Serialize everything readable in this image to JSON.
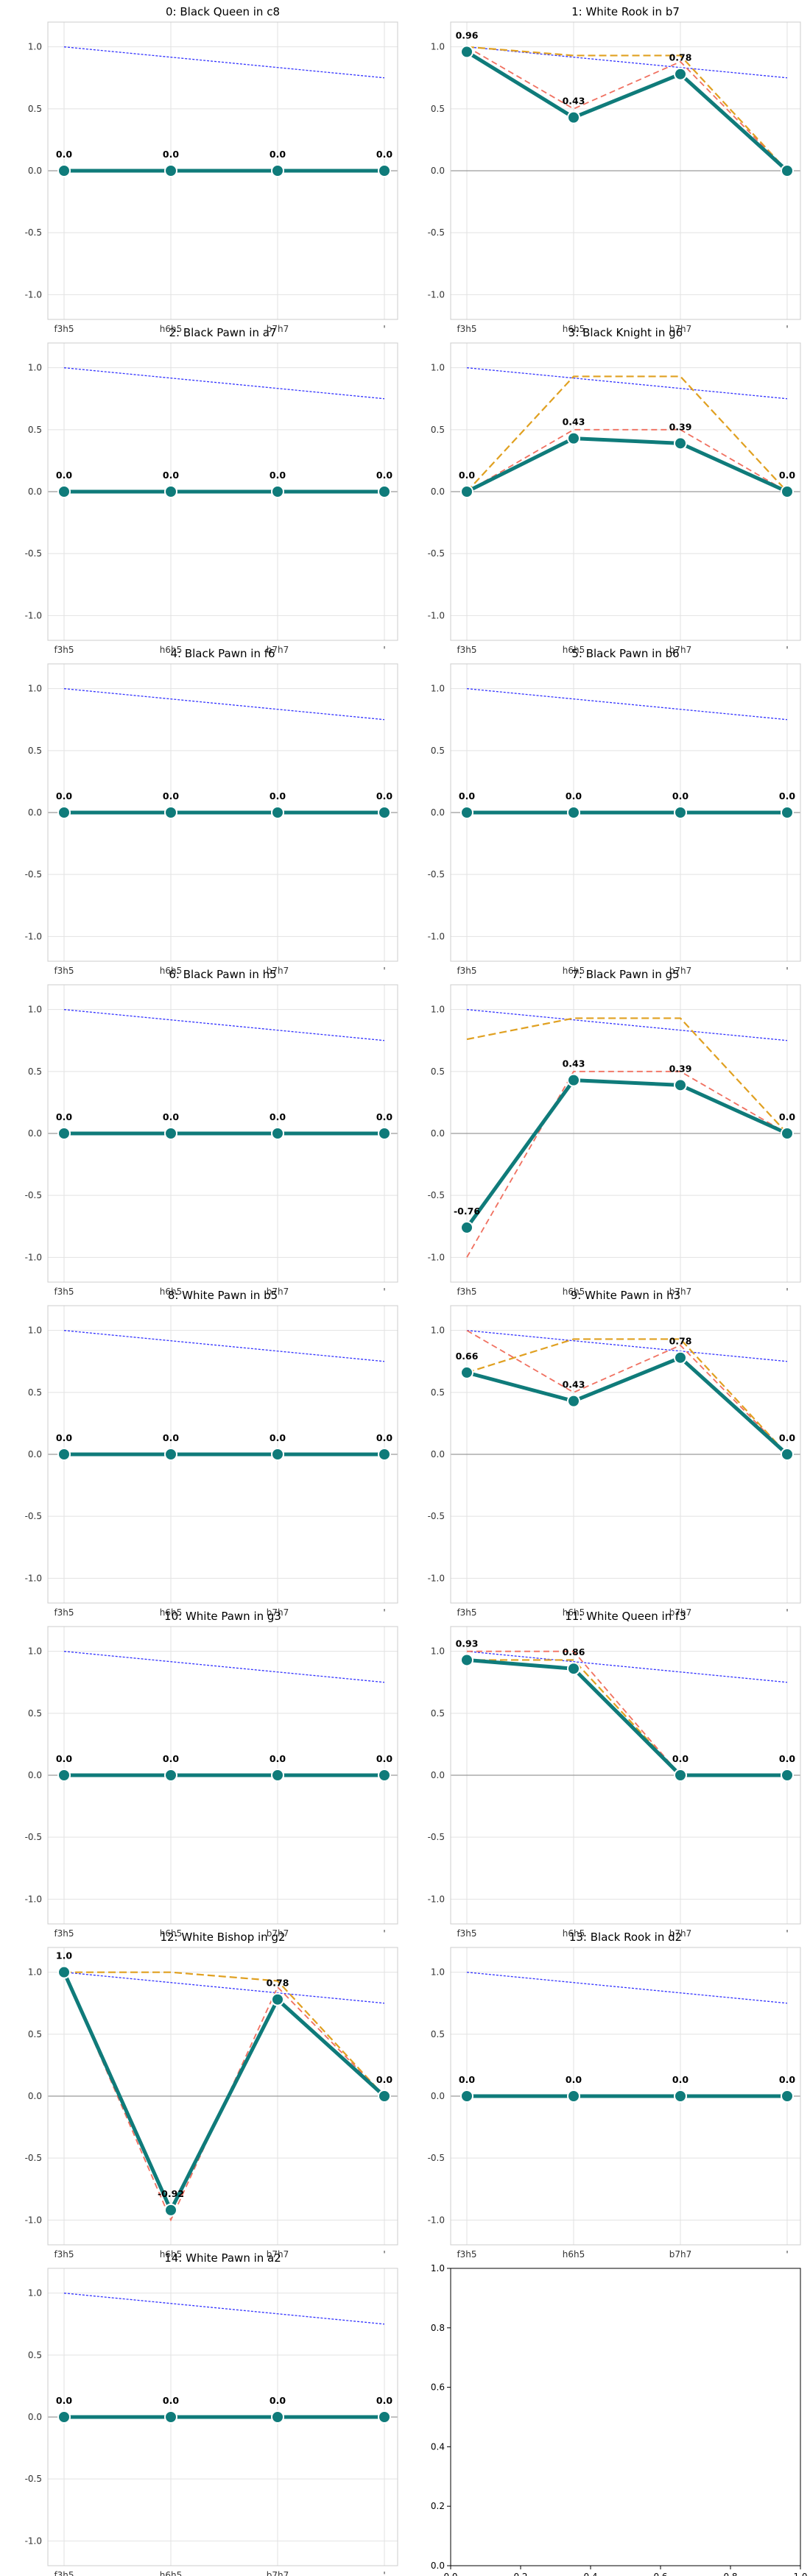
{
  "figure": {
    "x_ticks": [
      "f3h5",
      "h6h5",
      "b7h7",
      "'"
    ],
    "y_ticks": [
      "1.0",
      "0.5",
      "0.0",
      "-0.5",
      "-1.0"
    ],
    "empty_panel_ticks": [
      "0.0",
      "0.2",
      "0.4",
      "0.6",
      "0.8",
      "1.0"
    ]
  },
  "colors": {
    "main": "#0f7b7a",
    "blue_dotted": "#3333ff",
    "orange_dashed": "#e0a020",
    "red_dashed": "#f07060",
    "grid": "#e2e2e2",
    "zero_line": "#9a9a9a"
  },
  "chart_data": [
    {
      "title": "0: Black Queen in c8",
      "type": "line",
      "ylim": [
        -1.2,
        1.2
      ],
      "blue": [
        1.0,
        0.75
      ],
      "main": [
        0.0,
        0.0,
        0.0,
        0.0
      ],
      "labels": [
        "0.0",
        "0.0",
        "0.0",
        "0.0"
      ],
      "orange": null,
      "red": null
    },
    {
      "title": "1: White Rook in b7",
      "type": "line",
      "ylim": [
        -1.2,
        1.2
      ],
      "blue": [
        1.0,
        0.75
      ],
      "main": [
        0.96,
        0.43,
        0.78,
        0.0
      ],
      "labels": [
        "0.96",
        "0.43",
        "0.78",
        ""
      ],
      "orange": [
        1.0,
        0.93,
        0.93,
        0.0
      ],
      "red": [
        1.0,
        0.5,
        0.88,
        0.0
      ]
    },
    {
      "title": "2: Black Pawn in a7",
      "type": "line",
      "ylim": [
        -1.2,
        1.2
      ],
      "blue": [
        1.0,
        0.75
      ],
      "main": [
        0.0,
        0.0,
        0.0,
        0.0
      ],
      "labels": [
        "0.0",
        "0.0",
        "0.0",
        "0.0"
      ],
      "orange": null,
      "red": null
    },
    {
      "title": "3: Black Knight in g6",
      "type": "line",
      "ylim": [
        -1.2,
        1.2
      ],
      "blue": [
        1.0,
        0.75
      ],
      "main": [
        0.0,
        0.43,
        0.39,
        0.0
      ],
      "labels": [
        "0.0",
        "0.43",
        "0.39",
        "0.0"
      ],
      "orange": [
        0.0,
        0.93,
        0.93,
        0.0
      ],
      "red": [
        0.0,
        0.5,
        0.5,
        0.0
      ]
    },
    {
      "title": "4: Black Pawn in f6",
      "type": "line",
      "ylim": [
        -1.2,
        1.2
      ],
      "blue": [
        1.0,
        0.75
      ],
      "main": [
        0.0,
        0.0,
        0.0,
        0.0
      ],
      "labels": [
        "0.0",
        "0.0",
        "0.0",
        "0.0"
      ],
      "orange": null,
      "red": null
    },
    {
      "title": "5: Black Pawn in b6",
      "type": "line",
      "ylim": [
        -1.2,
        1.2
      ],
      "blue": [
        1.0,
        0.75
      ],
      "main": [
        0.0,
        0.0,
        0.0,
        0.0
      ],
      "labels": [
        "0.0",
        "0.0",
        "0.0",
        "0.0"
      ],
      "orange": null,
      "red": null
    },
    {
      "title": "6: Black Pawn in h5",
      "type": "line",
      "ylim": [
        -1.2,
        1.2
      ],
      "blue": [
        1.0,
        0.75
      ],
      "main": [
        0.0,
        0.0,
        0.0,
        0.0
      ],
      "labels": [
        "0.0",
        "0.0",
        "0.0",
        "0.0"
      ],
      "orange": null,
      "red": null
    },
    {
      "title": "7: Black Pawn in g5",
      "type": "line",
      "ylim": [
        -1.2,
        1.2
      ],
      "blue": [
        1.0,
        0.75
      ],
      "main": [
        -0.76,
        0.43,
        0.39,
        0.0
      ],
      "labels": [
        "-0.76",
        "0.43",
        "0.39",
        "0.0"
      ],
      "orange": [
        0.76,
        0.93,
        0.93,
        0.0
      ],
      "red": [
        -1.0,
        0.5,
        0.5,
        0.0
      ]
    },
    {
      "title": "8: White Pawn in b5",
      "type": "line",
      "ylim": [
        -1.2,
        1.2
      ],
      "blue": [
        1.0,
        0.75
      ],
      "main": [
        0.0,
        0.0,
        0.0,
        0.0
      ],
      "labels": [
        "0.0",
        "0.0",
        "0.0",
        "0.0"
      ],
      "orange": null,
      "red": null
    },
    {
      "title": "9: White Pawn in h3",
      "type": "line",
      "ylim": [
        -1.2,
        1.2
      ],
      "blue": [
        1.0,
        0.75
      ],
      "main": [
        0.66,
        0.43,
        0.78,
        0.0
      ],
      "labels": [
        "0.66",
        "0.43",
        "0.78",
        "0.0"
      ],
      "orange": [
        0.66,
        0.93,
        0.93,
        0.0
      ],
      "red": [
        1.0,
        0.5,
        0.88,
        0.0
      ]
    },
    {
      "title": "10: White Pawn in g3",
      "type": "line",
      "ylim": [
        -1.2,
        1.2
      ],
      "blue": [
        1.0,
        0.75
      ],
      "main": [
        0.0,
        0.0,
        0.0,
        0.0
      ],
      "labels": [
        "0.0",
        "0.0",
        "0.0",
        "0.0"
      ],
      "orange": null,
      "red": null
    },
    {
      "title": "11: White Queen in f3",
      "type": "line",
      "ylim": [
        -1.2,
        1.2
      ],
      "blue": [
        1.0,
        0.75
      ],
      "main": [
        0.93,
        0.86,
        0.0,
        0.0
      ],
      "labels": [
        "0.93",
        "0.86",
        "0.0",
        "0.0"
      ],
      "orange": [
        0.93,
        0.93,
        0.0,
        0.0
      ],
      "red": [
        1.0,
        1.0,
        0.0,
        0.0
      ]
    },
    {
      "title": "12: White Bishop in g2",
      "type": "line",
      "ylim": [
        -1.2,
        1.2
      ],
      "blue": [
        1.0,
        0.75
      ],
      "main": [
        1.0,
        -0.92,
        0.78,
        0.0
      ],
      "labels": [
        "1.0",
        "-0.92",
        "0.78",
        "0.0"
      ],
      "orange": [
        1.0,
        1.0,
        0.93,
        0.0
      ],
      "red": [
        1.0,
        -1.0,
        0.88,
        0.0
      ]
    },
    {
      "title": "13: Black Rook in d2",
      "type": "line",
      "ylim": [
        -1.2,
        1.2
      ],
      "blue": [
        1.0,
        0.75
      ],
      "main": [
        0.0,
        0.0,
        0.0,
        0.0
      ],
      "labels": [
        "0.0",
        "0.0",
        "0.0",
        "0.0"
      ],
      "orange": null,
      "red": null
    },
    {
      "title": "14: White Pawn in a2",
      "type": "line",
      "ylim": [
        -1.2,
        1.2
      ],
      "blue": [
        1.0,
        0.75
      ],
      "main": [
        0.0,
        0.0,
        0.0,
        0.0
      ],
      "labels": [
        "0.0",
        "0.0",
        "0.0",
        "0.0"
      ],
      "orange": null,
      "red": null
    },
    {
      "title": "",
      "type": "empty",
      "xlim": [
        0,
        1
      ],
      "ylim": [
        0,
        1
      ]
    }
  ]
}
